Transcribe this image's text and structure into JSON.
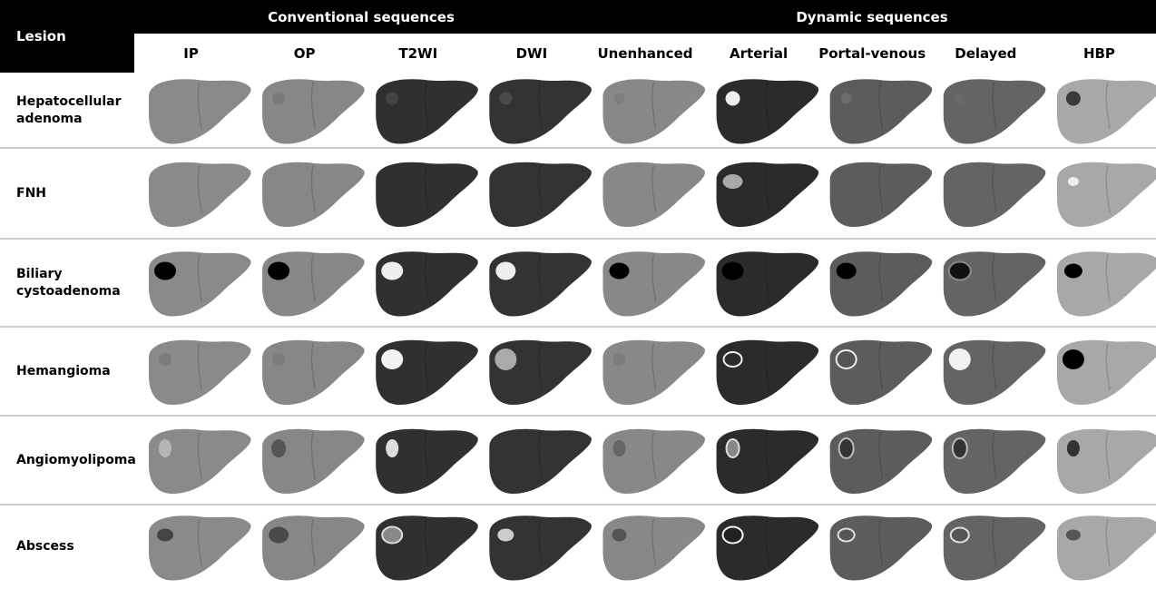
{
  "header": {
    "lesion": "Lesion",
    "groups": [
      "Conventional sequences",
      "Dynamic sequences"
    ],
    "columns": [
      "IP",
      "OP",
      "T2WI",
      "DWI",
      "Unenhanced",
      "Arterial",
      "Portal-venous",
      "Delayed",
      "HBP"
    ]
  },
  "rows": [
    {
      "label": "Hepatocellular adenoma"
    },
    {
      "label": "FNH"
    },
    {
      "label": "Biliary cystoadenoma"
    },
    {
      "label": "Hemangioma"
    },
    {
      "label": "Angiomyolipoma"
    },
    {
      "label": "Abscess"
    }
  ]
}
